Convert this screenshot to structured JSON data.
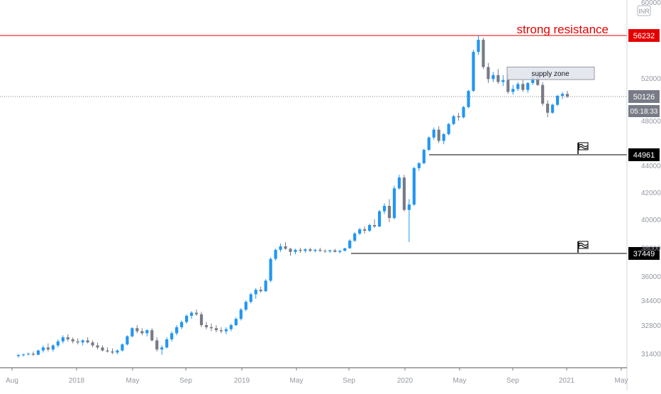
{
  "chart_data": {
    "type": "candlestick",
    "symbol_currency": "INR",
    "x_ticks": [
      "Aug",
      "2018",
      "May",
      "Sep",
      "2019",
      "May",
      "Sep",
      "2020",
      "May",
      "Sep",
      "2021",
      "May"
    ],
    "y_tick_labels": [
      "60000",
      "52000",
      "48000",
      "44000",
      "42000",
      "40000",
      "38000",
      "36000",
      "34400",
      "32800",
      "31400"
    ],
    "last_price": 50126,
    "countdown": "05:18:33",
    "levels": [
      {
        "price": 56232,
        "label": "56232",
        "color": "#e50000",
        "text": "strong resistance"
      },
      {
        "price": 44961,
        "label": "44961",
        "color": "#000000"
      },
      {
        "price": 37449,
        "label": "37449",
        "color": "#000000"
      }
    ],
    "supply_zone": {
      "label": "supply zone",
      "price_top": 53100,
      "price_bottom": 51850
    },
    "colors": {
      "up": "#2196f3",
      "down": "#787b86",
      "resistance": "#e50000",
      "last": "#787b86"
    },
    "ohlc_weekly": [
      [
        31200,
        31350,
        31050,
        31280
      ],
      [
        31280,
        31400,
        31150,
        31320
      ],
      [
        31320,
        31450,
        31250,
        31380
      ],
      [
        31380,
        31500,
        31200,
        31300
      ],
      [
        31300,
        31600,
        31250,
        31550
      ],
      [
        31550,
        31800,
        31450,
        31700
      ],
      [
        31700,
        31900,
        31500,
        31600
      ],
      [
        31600,
        31850,
        31500,
        31800
      ],
      [
        31800,
        32100,
        31700,
        32000
      ],
      [
        32000,
        32300,
        31900,
        32200
      ],
      [
        32200,
        32350,
        32000,
        32100
      ],
      [
        32100,
        32200,
        31900,
        32000
      ],
      [
        32000,
        32150,
        31850,
        31950
      ],
      [
        31950,
        32100,
        31800,
        32050
      ],
      [
        32050,
        32200,
        31900,
        31950
      ],
      [
        31950,
        32050,
        31700,
        31800
      ],
      [
        31800,
        31950,
        31600,
        31700
      ],
      [
        31700,
        31800,
        31500,
        31550
      ],
      [
        31550,
        31700,
        31450,
        31500
      ],
      [
        31500,
        31650,
        31350,
        31450
      ],
      [
        31450,
        31600,
        31350,
        31550
      ],
      [
        31550,
        31900,
        31500,
        31850
      ],
      [
        31850,
        32300,
        31800,
        32250
      ],
      [
        32250,
        32700,
        32200,
        32650
      ],
      [
        32650,
        32800,
        32400,
        32500
      ],
      [
        32500,
        32650,
        32300,
        32400
      ],
      [
        32400,
        32600,
        32250,
        32550
      ],
      [
        32550,
        32650,
        32000,
        32050
      ],
      [
        32050,
        32200,
        31500,
        31600
      ],
      [
        31600,
        31800,
        31300,
        31700
      ],
      [
        31700,
        32200,
        31650,
        32100
      ],
      [
        32100,
        32500,
        32000,
        32400
      ],
      [
        32400,
        32800,
        32300,
        32700
      ],
      [
        32700,
        33100,
        32600,
        33000
      ],
      [
        33000,
        33500,
        32900,
        33400
      ],
      [
        33400,
        33700,
        33200,
        33600
      ],
      [
        33600,
        33800,
        33400,
        33500
      ],
      [
        33500,
        33650,
        32700,
        32800
      ],
      [
        32800,
        33000,
        32600,
        32700
      ],
      [
        32700,
        32900,
        32500,
        32650
      ],
      [
        32650,
        32800,
        32450,
        32550
      ],
      [
        32550,
        32700,
        32400,
        32500
      ],
      [
        32500,
        32700,
        32350,
        32600
      ],
      [
        32600,
        32900,
        32500,
        32800
      ],
      [
        32800,
        33300,
        32750,
        33200
      ],
      [
        33200,
        33900,
        33100,
        33800
      ],
      [
        33800,
        34400,
        33700,
        34300
      ],
      [
        34300,
        34900,
        34200,
        34800
      ],
      [
        34800,
        35200,
        34500,
        35100
      ],
      [
        35100,
        35300,
        34900,
        35000
      ],
      [
        35000,
        35800,
        34950,
        35700
      ],
      [
        35700,
        37200,
        35600,
        37100
      ],
      [
        37100,
        37900,
        37000,
        37800
      ],
      [
        37800,
        38300,
        37600,
        38100
      ],
      [
        38100,
        38400,
        37800,
        37900
      ],
      [
        37900,
        38000,
        37300,
        37600
      ],
      [
        37600,
        37900,
        37400,
        37800
      ],
      [
        37800,
        38000,
        37500,
        37700
      ],
      [
        37700,
        37950,
        37500,
        37850
      ],
      [
        37850,
        38000,
        37600,
        37700
      ],
      [
        37700,
        37900,
        37550,
        37800
      ],
      [
        37800,
        38000,
        37600,
        37700
      ],
      [
        37700,
        37850,
        37500,
        37650
      ],
      [
        37650,
        37800,
        37500,
        37750
      ],
      [
        37750,
        37900,
        37550,
        37600
      ],
      [
        37600,
        37800,
        37450,
        37700
      ],
      [
        37700,
        38000,
        37650,
        37950
      ],
      [
        37950,
        38600,
        37900,
        38500
      ],
      [
        38500,
        39100,
        38400,
        39000
      ],
      [
        39000,
        39400,
        38900,
        39300
      ],
      [
        39300,
        39500,
        39000,
        39200
      ],
      [
        39200,
        39700,
        39100,
        39600
      ],
      [
        39600,
        40000,
        39400,
        39500
      ],
      [
        39500,
        40700,
        39450,
        40600
      ],
      [
        40600,
        41200,
        40400,
        41000
      ],
      [
        41000,
        41500,
        39800,
        40100
      ],
      [
        40100,
        42500,
        40000,
        42300
      ],
      [
        42300,
        43300,
        42200,
        43100
      ],
      [
        43100,
        43300,
        40600,
        40700
      ],
      [
        40700,
        41500,
        38400,
        41100
      ],
      [
        41100,
        43900,
        41000,
        43800
      ],
      [
        43800,
        44300,
        43600,
        44200
      ],
      [
        44200,
        45500,
        44100,
        45400
      ],
      [
        45400,
        46600,
        45300,
        46500
      ],
      [
        46500,
        47400,
        46300,
        47200
      ],
      [
        47200,
        47500,
        46000,
        46200
      ],
      [
        46200,
        46900,
        45900,
        46800
      ],
      [
        46800,
        47800,
        46700,
        47700
      ],
      [
        47700,
        48500,
        47600,
        48400
      ],
      [
        48400,
        48700,
        48000,
        48300
      ],
      [
        48300,
        49300,
        48200,
        49200
      ],
      [
        49200,
        50800,
        49100,
        50700
      ],
      [
        50700,
        54800,
        50600,
        54600
      ],
      [
        54600,
        56232,
        54300,
        55800
      ],
      [
        55800,
        56000,
        52900,
        53100
      ],
      [
        53100,
        53500,
        51500,
        51900
      ],
      [
        51900,
        52600,
        51600,
        52300
      ],
      [
        52300,
        52900,
        51400,
        51600
      ],
      [
        51600,
        52300,
        51200,
        51800
      ],
      [
        51800,
        52400,
        50400,
        50600
      ],
      [
        50600,
        51300,
        50300,
        50900
      ],
      [
        50900,
        51600,
        50700,
        51400
      ],
      [
        51400,
        51900,
        50600,
        50800
      ],
      [
        50800,
        51600,
        50500,
        51500
      ],
      [
        51500,
        52200,
        51300,
        52100
      ],
      [
        52100,
        52800,
        51200,
        51300
      ],
      [
        51300,
        51600,
        49300,
        49500
      ],
      [
        49500,
        49800,
        48300,
        48700
      ],
      [
        48700,
        49500,
        48600,
        49400
      ],
      [
        49400,
        50300,
        49300,
        50200
      ],
      [
        50200,
        50600,
        49900,
        50400
      ],
      [
        50400,
        50700,
        50000,
        50126
      ]
    ]
  }
}
